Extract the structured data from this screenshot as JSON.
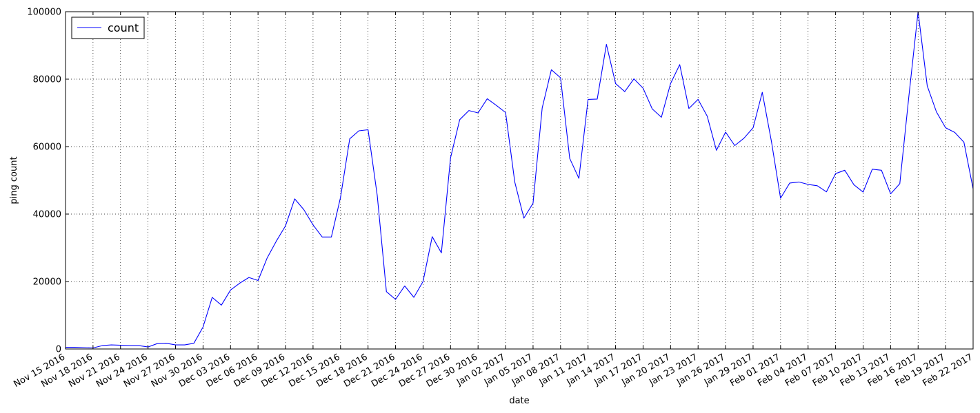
{
  "chart_data": {
    "type": "line",
    "xlabel": "date",
    "ylabel": "ping count",
    "xlim": [
      "2016-11-15",
      "2017-02-22"
    ],
    "ylim": [
      0,
      100000
    ],
    "grid": true,
    "grid_style": "dotted",
    "legend_position": "top-left",
    "y_ticks": [
      0,
      20000,
      40000,
      60000,
      80000,
      100000
    ],
    "y_tick_labels": [
      "0",
      "20000",
      "40000",
      "60000",
      "80000",
      "100000"
    ],
    "x_ticks": [
      "2016-11-15",
      "2016-11-18",
      "2016-11-21",
      "2016-11-24",
      "2016-11-27",
      "2016-11-30",
      "2016-12-03",
      "2016-12-06",
      "2016-12-09",
      "2016-12-12",
      "2016-12-15",
      "2016-12-18",
      "2016-12-21",
      "2016-12-24",
      "2016-12-27",
      "2016-12-30",
      "2017-01-02",
      "2017-01-05",
      "2017-01-08",
      "2017-01-11",
      "2017-01-14",
      "2017-01-17",
      "2017-01-20",
      "2017-01-23",
      "2017-01-26",
      "2017-01-29",
      "2017-02-01",
      "2017-02-04",
      "2017-02-07",
      "2017-02-10",
      "2017-02-13",
      "2017-02-16",
      "2017-02-19",
      "2017-02-22"
    ],
    "x_tick_labels": [
      "Nov 15 2016",
      "Nov 18 2016",
      "Nov 21 2016",
      "Nov 24 2016",
      "Nov 27 2016",
      "Nov 30 2016",
      "Dec 03 2016",
      "Dec 06 2016",
      "Dec 09 2016",
      "Dec 12 2016",
      "Dec 15 2016",
      "Dec 18 2016",
      "Dec 21 2016",
      "Dec 24 2016",
      "Dec 27 2016",
      "Dec 30 2016",
      "Jan 02 2017",
      "Jan 05 2017",
      "Jan 08 2017",
      "Jan 11 2017",
      "Jan 14 2017",
      "Jan 17 2017",
      "Jan 20 2017",
      "Jan 23 2017",
      "Jan 26 2017",
      "Jan 29 2017",
      "Feb 01 2017",
      "Feb 04 2017",
      "Feb 07 2017",
      "Feb 10 2017",
      "Feb 13 2017",
      "Feb 16 2017",
      "Feb 19 2017",
      "Feb 22 2017"
    ],
    "series": [
      {
        "name": "count",
        "color": "#0000ff",
        "start_date": "2016-11-15",
        "values": [
          500,
          500,
          400,
          300,
          1000,
          1200,
          1100,
          1000,
          1000,
          600,
          1600,
          1700,
          1200,
          1200,
          1700,
          6500,
          15300,
          13000,
          17500,
          19500,
          21200,
          20300,
          27000,
          32000,
          36500,
          44500,
          41300,
          36800,
          33200,
          33200,
          45000,
          62300,
          64700,
          65000,
          45500,
          17000,
          14700,
          18700,
          15300,
          20000,
          33300,
          28500,
          56700,
          68000,
          70700,
          70000,
          74200,
          72200,
          70100,
          49500,
          38800,
          43200,
          71500,
          82800,
          80400,
          56500,
          50600,
          74000,
          74100,
          90300,
          78700,
          76300,
          80100,
          77300,
          71200,
          68700,
          78700,
          84300,
          71300,
          74000,
          69000,
          58900,
          64300,
          60300,
          62500,
          65600,
          76100,
          61500,
          44700,
          49200,
          49500,
          48800,
          48400,
          46600,
          52000,
          53000,
          48700,
          46500,
          53300,
          53000,
          46000,
          49000,
          75000,
          100000,
          78000,
          70300,
          65600,
          64200,
          61300,
          47500
        ]
      }
    ]
  }
}
